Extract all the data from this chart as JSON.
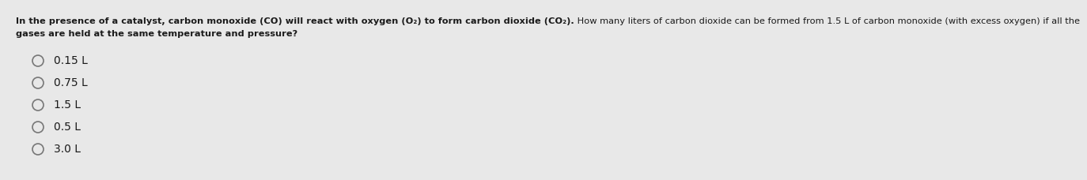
{
  "background_color": "#e8e8e8",
  "text_color": "#1a1a1a",
  "q_line1": "In the presence of a catalyst, carbon monoxide (CO) will react with oxygen (O₂) to form carbon dioxide (CO₂). How many liters of carbon dioxide can be formed from 1.5 L of carbon monoxide (with excess oxygen) if all the",
  "q_line1_bold_part": "In the presence of a catalyst, carbon monoxide (CO) will react with oxygen (O₂) to form carbon dioxide (CO₂).",
  "q_line1_normal_part": " How many liters of carbon dioxide can be formed from 1.5 L of carbon monoxide (with excess oxygen) if all the",
  "q_line2": "gases are held at the same temperature and pressure?",
  "choices": [
    "0.15 L",
    "0.75 L",
    "1.5 L",
    "0.5 L",
    "3.0 L"
  ],
  "question_fontsize": 8.2,
  "choice_fontsize": 10.0,
  "circle_color": "#777777",
  "circle_linewidth": 1.2
}
